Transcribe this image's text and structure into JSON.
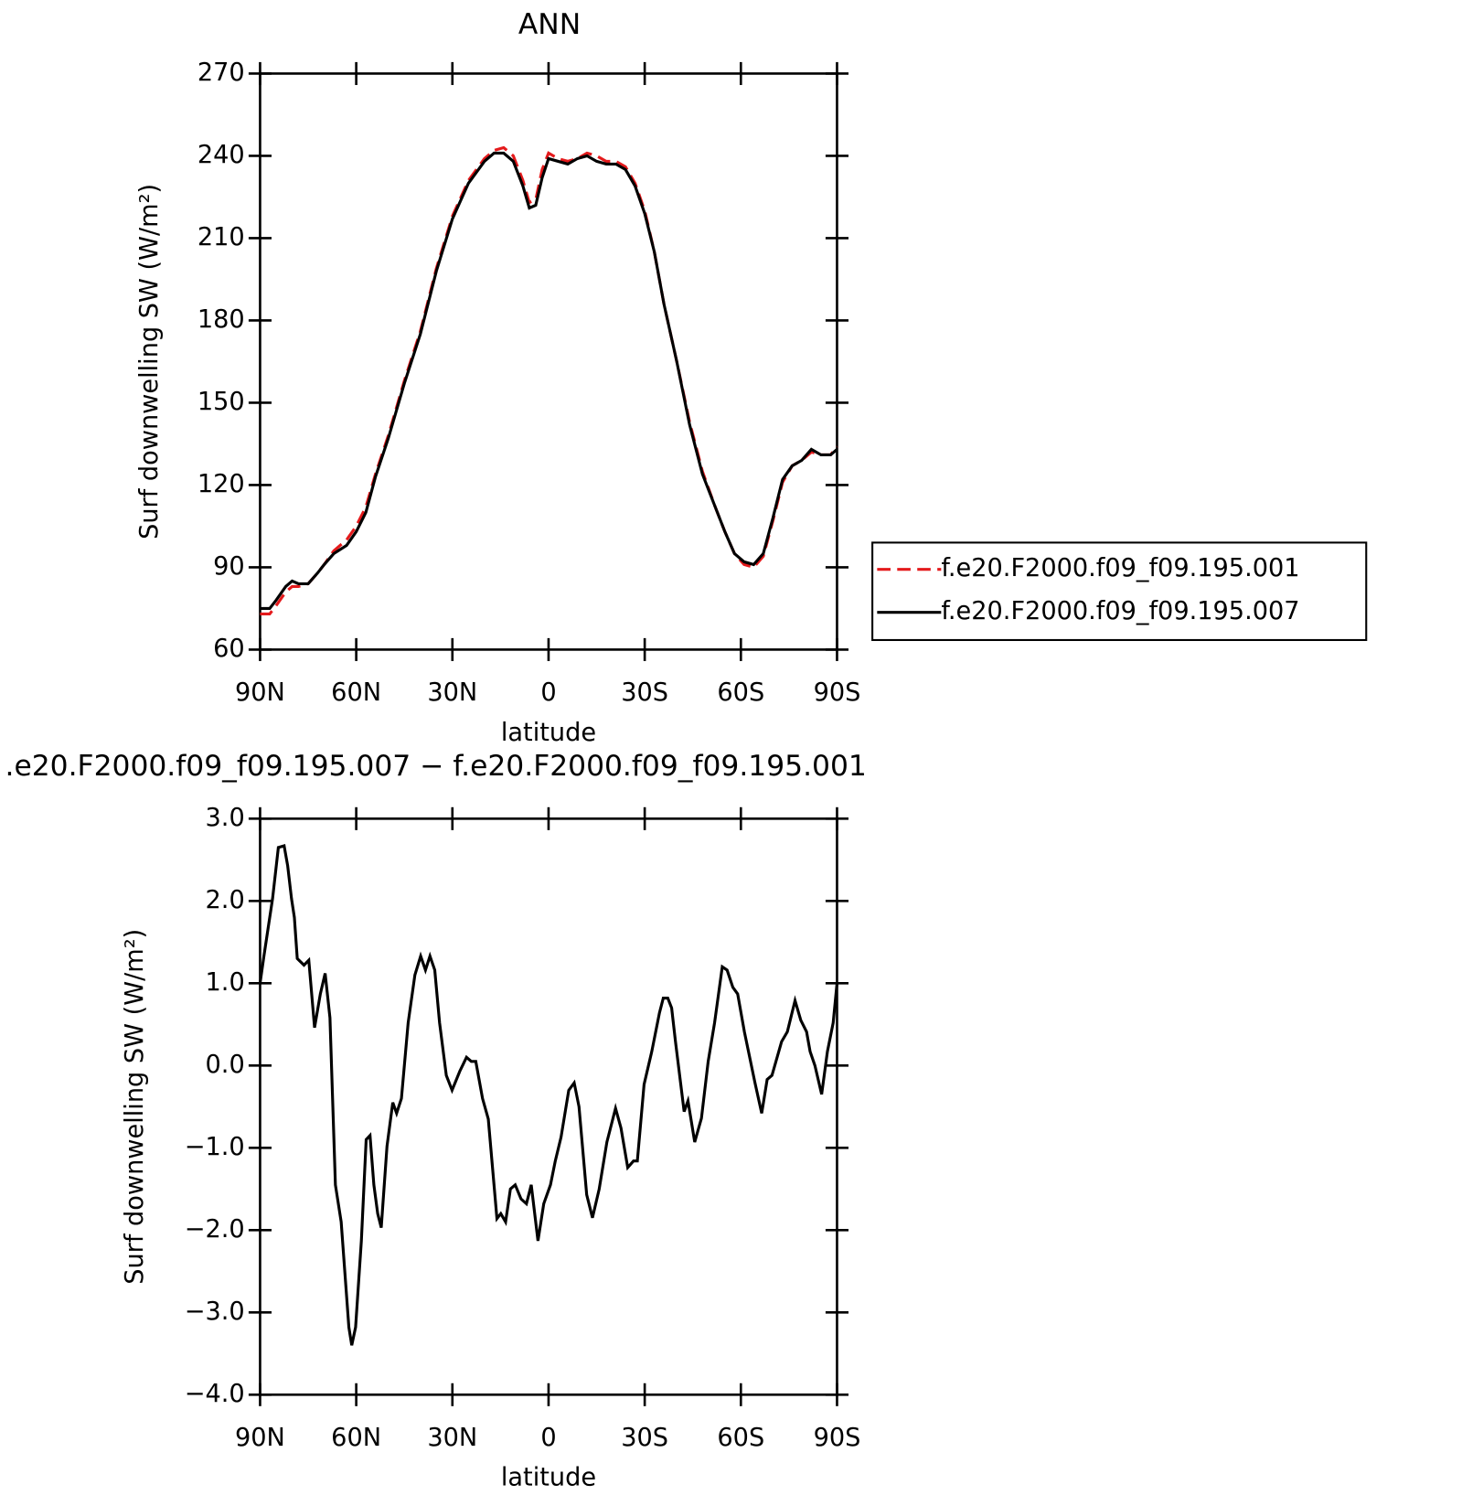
{
  "chart_data": [
    {
      "type": "line",
      "title": "ANN",
      "xlabel": "latitude",
      "ylabel": "Surf downwelling SW (W/m²)",
      "x": [
        90,
        87,
        85,
        82,
        80,
        78,
        75,
        72,
        70,
        67,
        63,
        60,
        57,
        54,
        50,
        45,
        40,
        35,
        30,
        25,
        20,
        17,
        14,
        11,
        8,
        6,
        4,
        2,
        0,
        -3,
        -6,
        -9,
        -12,
        -15,
        -18,
        -21,
        -24,
        -27,
        -30,
        -33,
        -36,
        -40,
        -44,
        -48,
        -52,
        -55,
        -58,
        -61,
        -64,
        -67,
        -70,
        -73,
        -76,
        -79,
        -82,
        -85,
        -88,
        -90
      ],
      "series": [
        {
          "name": "f.e20.F2000.f09_f09.195.001",
          "color": "#e41a1c",
          "linestyle": "dashed",
          "values": [
            73,
            73,
            76,
            81,
            83,
            83,
            84,
            88,
            91,
            96,
            100,
            105,
            112,
            124,
            138,
            158,
            176,
            199,
            218,
            231,
            239,
            242,
            243,
            240,
            231,
            223,
            224,
            235,
            241,
            239,
            238,
            239,
            241,
            240,
            238,
            238,
            236,
            230,
            220,
            205,
            186,
            165,
            143,
            125,
            112,
            103,
            95,
            91,
            90,
            94,
            107,
            121,
            127,
            129,
            132,
            131,
            131,
            134
          ]
        },
        {
          "name": "f.e20.F2000.f09_f09.195.007",
          "color": "#000000",
          "linestyle": "solid",
          "values": [
            75,
            75,
            78,
            83,
            85,
            84,
            84,
            88,
            91,
            95,
            98,
            103,
            110,
            123,
            137,
            157,
            175,
            198,
            217,
            230,
            238,
            241,
            241,
            238,
            229,
            221,
            222,
            232,
            239,
            238,
            237,
            239,
            240,
            238,
            237,
            237,
            235,
            229,
            219,
            205,
            186,
            165,
            142,
            124,
            112,
            103,
            95,
            92,
            91,
            95,
            108,
            122,
            127,
            129,
            133,
            131,
            131,
            133
          ]
        }
      ],
      "xlim": [
        90,
        -90
      ],
      "xticks": [
        {
          "value": 90,
          "label": "90N"
        },
        {
          "value": 60,
          "label": "60N"
        },
        {
          "value": 30,
          "label": "30N"
        },
        0,
        {
          "value": -30,
          "label": "30S"
        },
        {
          "value": -60,
          "label": "60S"
        },
        {
          "value": -90,
          "label": "90S"
        }
      ],
      "ylim": [
        60,
        270
      ],
      "yticks": [
        60,
        90,
        120,
        150,
        180,
        210,
        240,
        270
      ],
      "legend": "right"
    },
    {
      "type": "line",
      "title": ".e20.F2000.f09_f09.195.007 − f.e20.F2000.f09_f09.195.001",
      "xlabel": "latitude",
      "ylabel": "Surf downwelling SW (W/m²)",
      "x": [
        90,
        88.8,
        86.1,
        84.3,
        82.5,
        81.4,
        80.2,
        79.3,
        78.4,
        76.3,
        74.8,
        73.0,
        71.2,
        69.7,
        68.2,
        66.5,
        64.7,
        62.3,
        61.4,
        60.2,
        58.4,
        56.9,
        55.7,
        54.5,
        53.3,
        52.2,
        50.4,
        48.6,
        47.4,
        45.9,
        43.8,
        41.7,
        39.9,
        38.4,
        37.0,
        35.5,
        34.0,
        31.9,
        30.1,
        27.7,
        25.6,
        24.1,
        22.7,
        20.6,
        18.8,
        16.1,
        14.9,
        13.4,
        11.9,
        10.4,
        8.6,
        6.9,
        5.4,
        3.3,
        1.5,
        -0.6,
        -2.1,
        -3.9,
        -6.3,
        -8.0,
        -9.5,
        -11.9,
        -13.7,
        -15.8,
        -18.2,
        -20.9,
        -22.6,
        -24.7,
        -26.5,
        -27.7,
        -29.8,
        -32.2,
        -34.6,
        -35.8,
        -37.2,
        -38.4,
        -39.6,
        -42.3,
        -43.5,
        -45.6,
        -47.7,
        -49.8,
        -51.8,
        -54.2,
        -55.7,
        -57.5,
        -59.0,
        -61.1,
        -64.4,
        -66.5,
        -68.2,
        -69.7,
        -72.7,
        -74.5,
        -76.9,
        -78.7,
        -80.5,
        -81.6,
        -83.1,
        -85.2,
        -87.0,
        -88.8,
        -90
      ],
      "color": "#000000",
      "values": [
        1.0,
        1.33,
        2.03,
        2.65,
        2.67,
        2.43,
        2.03,
        1.8,
        1.3,
        1.22,
        1.28,
        0.46,
        0.87,
        1.12,
        0.58,
        -1.45,
        -1.9,
        -3.18,
        -3.4,
        -3.18,
        -2.13,
        -0.9,
        -0.85,
        -1.45,
        -1.8,
        -1.97,
        -0.98,
        -0.45,
        -0.58,
        -0.4,
        0.52,
        1.1,
        1.33,
        1.16,
        1.33,
        1.16,
        0.52,
        -0.12,
        -0.3,
        -0.07,
        0.1,
        0.05,
        0.05,
        -0.4,
        -0.65,
        -1.86,
        -1.8,
        -1.9,
        -1.5,
        -1.45,
        -1.62,
        -1.68,
        -1.45,
        -2.13,
        -1.68,
        -1.45,
        -1.16,
        -0.87,
        -0.3,
        -0.21,
        -0.5,
        -1.57,
        -1.85,
        -1.5,
        -0.93,
        -0.52,
        -0.76,
        -1.24,
        -1.16,
        -1.16,
        -0.23,
        0.17,
        0.64,
        0.82,
        0.82,
        0.7,
        0.29,
        -0.56,
        -0.43,
        -0.93,
        -0.64,
        0.05,
        0.52,
        1.2,
        1.16,
        0.95,
        0.87,
        0.41,
        -0.21,
        -0.58,
        -0.17,
        -0.12,
        0.29,
        0.41,
        0.79,
        0.55,
        0.41,
        0.17,
        0,
        -0.35,
        0.17,
        0.52,
        1.0
      ],
      "xlim": [
        90,
        -90
      ],
      "xticks": [
        {
          "value": 90,
          "label": "90N"
        },
        {
          "value": 60,
          "label": "60N"
        },
        {
          "value": 30,
          "label": "30N"
        },
        0,
        {
          "value": -30,
          "label": "30S"
        },
        {
          "value": -60,
          "label": "60S"
        },
        {
          "value": -90,
          "label": "90S"
        }
      ],
      "ylim": [
        -4,
        3
      ],
      "yticks": [
        {
          "value": -4,
          "label": "−4.0"
        },
        {
          "value": -3,
          "label": "−3.0"
        },
        {
          "value": -2,
          "label": "−2.0"
        },
        {
          "value": -1,
          "label": "−1.0"
        },
        {
          "value": 0,
          "label": "0.0"
        },
        {
          "value": 1,
          "label": "1.0"
        },
        {
          "value": 2,
          "label": "2.0"
        },
        {
          "value": 3,
          "label": "3.0"
        }
      ]
    }
  ]
}
